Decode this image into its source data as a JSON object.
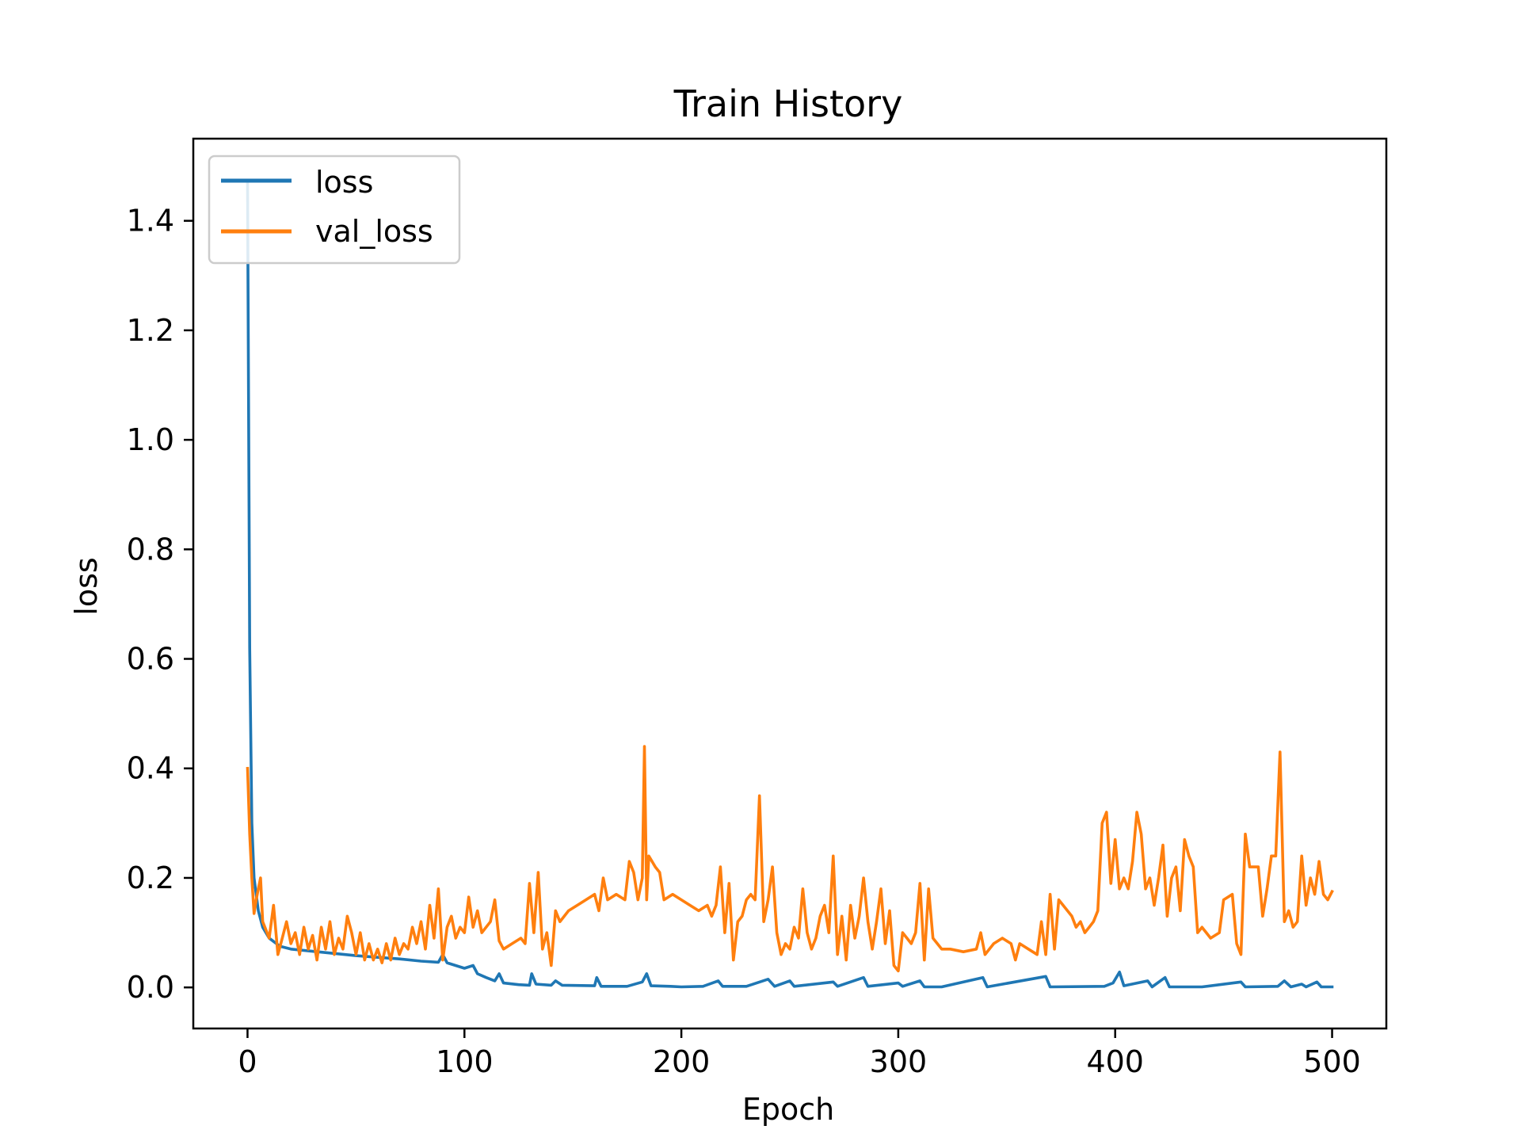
{
  "chart_data": {
    "type": "line",
    "title": "Train History",
    "xlabel": "Epoch",
    "ylabel": "loss",
    "xlim": [
      -25,
      525
    ],
    "ylim": [
      -0.075,
      1.55
    ],
    "xticks": [
      0,
      100,
      200,
      300,
      400,
      500
    ],
    "xtick_labels": [
      "0",
      "100",
      "200",
      "300",
      "400",
      "500"
    ],
    "yticks": [
      0.0,
      0.2,
      0.4,
      0.6,
      0.8,
      1.0,
      1.2,
      1.4
    ],
    "ytick_labels": [
      "0.0",
      "0.2",
      "0.4",
      "0.6",
      "0.8",
      "1.0",
      "1.2",
      "1.4"
    ],
    "grid": false,
    "legend_position": "upper-left",
    "series": [
      {
        "name": "loss",
        "color": "#1f77b4",
        "points": [
          [
            0,
            1.47
          ],
          [
            1,
            0.62
          ],
          [
            2,
            0.3
          ],
          [
            3,
            0.2
          ],
          [
            5,
            0.14
          ],
          [
            7,
            0.11
          ],
          [
            10,
            0.09
          ],
          [
            15,
            0.075
          ],
          [
            20,
            0.07
          ],
          [
            30,
            0.066
          ],
          [
            40,
            0.062
          ],
          [
            50,
            0.058
          ],
          [
            60,
            0.055
          ],
          [
            70,
            0.052
          ],
          [
            80,
            0.048
          ],
          [
            88,
            0.046
          ],
          [
            90,
            0.06
          ],
          [
            92,
            0.045
          ],
          [
            100,
            0.035
          ],
          [
            104,
            0.04
          ],
          [
            106,
            0.025
          ],
          [
            110,
            0.018
          ],
          [
            114,
            0.012
          ],
          [
            116,
            0.025
          ],
          [
            118,
            0.008
          ],
          [
            125,
            0.005
          ],
          [
            130,
            0.004
          ],
          [
            131,
            0.025
          ],
          [
            133,
            0.006
          ],
          [
            140,
            0.004
          ],
          [
            142,
            0.012
          ],
          [
            145,
            0.004
          ],
          [
            160,
            0.003
          ],
          [
            161,
            0.018
          ],
          [
            163,
            0.002
          ],
          [
            175,
            0.002
          ],
          [
            182,
            0.01
          ],
          [
            184,
            0.025
          ],
          [
            186,
            0.003
          ],
          [
            195,
            0.002
          ],
          [
            200,
            0.001
          ],
          [
            210,
            0.002
          ],
          [
            217,
            0.012
          ],
          [
            219,
            0.002
          ],
          [
            230,
            0.002
          ],
          [
            240,
            0.015
          ],
          [
            243,
            0.002
          ],
          [
            250,
            0.012
          ],
          [
            252,
            0.002
          ],
          [
            270,
            0.01
          ],
          [
            272,
            0.002
          ],
          [
            284,
            0.018
          ],
          [
            286,
            0.002
          ],
          [
            300,
            0.008
          ],
          [
            302,
            0.002
          ],
          [
            310,
            0.012
          ],
          [
            312,
            0.001
          ],
          [
            320,
            0.001
          ],
          [
            339,
            0.018
          ],
          [
            341,
            0.001
          ],
          [
            368,
            0.02
          ],
          [
            370,
            0.001
          ],
          [
            395,
            0.002
          ],
          [
            399,
            0.008
          ],
          [
            402,
            0.028
          ],
          [
            404,
            0.003
          ],
          [
            415,
            0.012
          ],
          [
            417,
            0.001
          ],
          [
            423,
            0.018
          ],
          [
            425,
            0.001
          ],
          [
            440,
            0.001
          ],
          [
            458,
            0.01
          ],
          [
            460,
            0.001
          ],
          [
            475,
            0.002
          ],
          [
            478,
            0.012
          ],
          [
            481,
            0.001
          ],
          [
            486,
            0.006
          ],
          [
            488,
            0.001
          ],
          [
            493,
            0.01
          ],
          [
            495,
            0.001
          ],
          [
            500,
            0.001
          ]
        ]
      },
      {
        "name": "val_loss",
        "color": "#ff7f0e",
        "points": [
          [
            0,
            0.4
          ],
          [
            1,
            0.28
          ],
          [
            2,
            0.2
          ],
          [
            3,
            0.135
          ],
          [
            4,
            0.16
          ],
          [
            5,
            0.18
          ],
          [
            6,
            0.2
          ],
          [
            7,
            0.12
          ],
          [
            8,
            0.11
          ],
          [
            10,
            0.09
          ],
          [
            12,
            0.15
          ],
          [
            14,
            0.06
          ],
          [
            16,
            0.09
          ],
          [
            18,
            0.12
          ],
          [
            20,
            0.08
          ],
          [
            22,
            0.1
          ],
          [
            24,
            0.06
          ],
          [
            26,
            0.11
          ],
          [
            28,
            0.07
          ],
          [
            30,
            0.095
          ],
          [
            32,
            0.05
          ],
          [
            34,
            0.11
          ],
          [
            36,
            0.07
          ],
          [
            38,
            0.12
          ],
          [
            40,
            0.06
          ],
          [
            42,
            0.09
          ],
          [
            44,
            0.07
          ],
          [
            46,
            0.13
          ],
          [
            48,
            0.1
          ],
          [
            50,
            0.06
          ],
          [
            52,
            0.1
          ],
          [
            54,
            0.05
          ],
          [
            56,
            0.08
          ],
          [
            58,
            0.05
          ],
          [
            60,
            0.07
          ],
          [
            62,
            0.045
          ],
          [
            64,
            0.08
          ],
          [
            66,
            0.05
          ],
          [
            68,
            0.09
          ],
          [
            70,
            0.06
          ],
          [
            72,
            0.08
          ],
          [
            74,
            0.07
          ],
          [
            76,
            0.11
          ],
          [
            78,
            0.08
          ],
          [
            80,
            0.12
          ],
          [
            82,
            0.07
          ],
          [
            84,
            0.15
          ],
          [
            86,
            0.09
          ],
          [
            88,
            0.18
          ],
          [
            90,
            0.05
          ],
          [
            92,
            0.11
          ],
          [
            94,
            0.13
          ],
          [
            96,
            0.09
          ],
          [
            98,
            0.11
          ],
          [
            100,
            0.1
          ],
          [
            102,
            0.165
          ],
          [
            104,
            0.11
          ],
          [
            106,
            0.14
          ],
          [
            108,
            0.1
          ],
          [
            112,
            0.12
          ],
          [
            114,
            0.16
          ],
          [
            116,
            0.085
          ],
          [
            118,
            0.07
          ],
          [
            122,
            0.08
          ],
          [
            126,
            0.09
          ],
          [
            128,
            0.08
          ],
          [
            130,
            0.19
          ],
          [
            132,
            0.1
          ],
          [
            134,
            0.21
          ],
          [
            136,
            0.07
          ],
          [
            138,
            0.1
          ],
          [
            140,
            0.04
          ],
          [
            142,
            0.14
          ],
          [
            144,
            0.12
          ],
          [
            148,
            0.14
          ],
          [
            152,
            0.15
          ],
          [
            156,
            0.16
          ],
          [
            160,
            0.17
          ],
          [
            162,
            0.14
          ],
          [
            164,
            0.2
          ],
          [
            166,
            0.16
          ],
          [
            170,
            0.17
          ],
          [
            174,
            0.16
          ],
          [
            176,
            0.23
          ],
          [
            178,
            0.21
          ],
          [
            180,
            0.16
          ],
          [
            182,
            0.2
          ],
          [
            183,
            0.44
          ],
          [
            184,
            0.16
          ],
          [
            185,
            0.24
          ],
          [
            188,
            0.22
          ],
          [
            190,
            0.21
          ],
          [
            192,
            0.16
          ],
          [
            196,
            0.17
          ],
          [
            200,
            0.16
          ],
          [
            204,
            0.15
          ],
          [
            208,
            0.14
          ],
          [
            212,
            0.15
          ],
          [
            214,
            0.13
          ],
          [
            216,
            0.15
          ],
          [
            218,
            0.22
          ],
          [
            220,
            0.1
          ],
          [
            222,
            0.19
          ],
          [
            224,
            0.05
          ],
          [
            226,
            0.12
          ],
          [
            228,
            0.13
          ],
          [
            230,
            0.16
          ],
          [
            232,
            0.17
          ],
          [
            234,
            0.16
          ],
          [
            236,
            0.35
          ],
          [
            238,
            0.12
          ],
          [
            240,
            0.16
          ],
          [
            242,
            0.22
          ],
          [
            244,
            0.1
          ],
          [
            246,
            0.06
          ],
          [
            248,
            0.08
          ],
          [
            250,
            0.07
          ],
          [
            252,
            0.11
          ],
          [
            254,
            0.09
          ],
          [
            256,
            0.18
          ],
          [
            258,
            0.1
          ],
          [
            260,
            0.07
          ],
          [
            262,
            0.09
          ],
          [
            264,
            0.13
          ],
          [
            266,
            0.15
          ],
          [
            268,
            0.1
          ],
          [
            270,
            0.24
          ],
          [
            272,
            0.06
          ],
          [
            274,
            0.13
          ],
          [
            276,
            0.05
          ],
          [
            278,
            0.15
          ],
          [
            280,
            0.09
          ],
          [
            282,
            0.13
          ],
          [
            284,
            0.2
          ],
          [
            286,
            0.12
          ],
          [
            288,
            0.07
          ],
          [
            290,
            0.12
          ],
          [
            292,
            0.18
          ],
          [
            294,
            0.08
          ],
          [
            296,
            0.14
          ],
          [
            298,
            0.04
          ],
          [
            300,
            0.03
          ],
          [
            302,
            0.1
          ],
          [
            304,
            0.09
          ],
          [
            306,
            0.08
          ],
          [
            308,
            0.1
          ],
          [
            310,
            0.19
          ],
          [
            312,
            0.05
          ],
          [
            314,
            0.18
          ],
          [
            316,
            0.09
          ],
          [
            318,
            0.08
          ],
          [
            320,
            0.07
          ],
          [
            324,
            0.07
          ],
          [
            330,
            0.065
          ],
          [
            336,
            0.07
          ],
          [
            338,
            0.1
          ],
          [
            340,
            0.06
          ],
          [
            344,
            0.08
          ],
          [
            348,
            0.09
          ],
          [
            352,
            0.08
          ],
          [
            354,
            0.05
          ],
          [
            356,
            0.08
          ],
          [
            360,
            0.07
          ],
          [
            364,
            0.06
          ],
          [
            366,
            0.12
          ],
          [
            368,
            0.06
          ],
          [
            370,
            0.17
          ],
          [
            372,
            0.07
          ],
          [
            374,
            0.16
          ],
          [
            376,
            0.15
          ],
          [
            378,
            0.14
          ],
          [
            380,
            0.13
          ],
          [
            382,
            0.11
          ],
          [
            384,
            0.12
          ],
          [
            386,
            0.1
          ],
          [
            388,
            0.11
          ],
          [
            390,
            0.12
          ],
          [
            392,
            0.14
          ],
          [
            394,
            0.3
          ],
          [
            396,
            0.32
          ],
          [
            398,
            0.19
          ],
          [
            400,
            0.27
          ],
          [
            402,
            0.18
          ],
          [
            404,
            0.2
          ],
          [
            406,
            0.18
          ],
          [
            408,
            0.23
          ],
          [
            410,
            0.32
          ],
          [
            412,
            0.28
          ],
          [
            414,
            0.18
          ],
          [
            416,
            0.2
          ],
          [
            418,
            0.15
          ],
          [
            420,
            0.2
          ],
          [
            422,
            0.26
          ],
          [
            424,
            0.13
          ],
          [
            426,
            0.2
          ],
          [
            428,
            0.22
          ],
          [
            430,
            0.14
          ],
          [
            432,
            0.27
          ],
          [
            434,
            0.24
          ],
          [
            436,
            0.22
          ],
          [
            438,
            0.1
          ],
          [
            440,
            0.11
          ],
          [
            444,
            0.09
          ],
          [
            448,
            0.1
          ],
          [
            450,
            0.16
          ],
          [
            454,
            0.17
          ],
          [
            456,
            0.08
          ],
          [
            458,
            0.06
          ],
          [
            460,
            0.28
          ],
          [
            462,
            0.22
          ],
          [
            466,
            0.22
          ],
          [
            468,
            0.13
          ],
          [
            470,
            0.18
          ],
          [
            472,
            0.24
          ],
          [
            474,
            0.24
          ],
          [
            476,
            0.43
          ],
          [
            478,
            0.12
          ],
          [
            480,
            0.14
          ],
          [
            482,
            0.11
          ],
          [
            484,
            0.12
          ],
          [
            486,
            0.24
          ],
          [
            488,
            0.15
          ],
          [
            490,
            0.2
          ],
          [
            492,
            0.17
          ],
          [
            494,
            0.23
          ],
          [
            496,
            0.17
          ],
          [
            498,
            0.16
          ],
          [
            500,
            0.175
          ]
        ]
      }
    ]
  }
}
